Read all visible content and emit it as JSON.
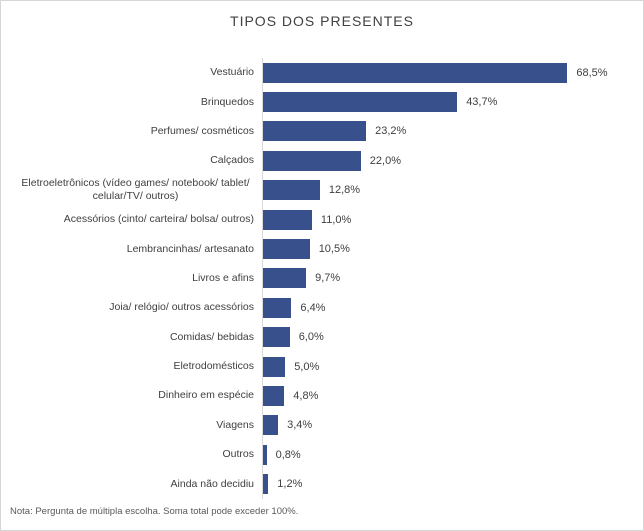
{
  "title": "TIPOS DOS PRESENTES",
  "note": "Nota: Pergunta de múltipla escolha. Soma total pode exceder 100%.",
  "chart_data": {
    "type": "bar",
    "orientation": "horizontal",
    "title": "TIPOS DOS PRESENTES",
    "xlabel": "",
    "ylabel": "",
    "xlim": [
      0,
      70
    ],
    "grid": false,
    "legend": false,
    "bar_color": "#38508C",
    "axis_color": "#D9D9D9",
    "text_color": "#404040",
    "note_color": "#595959",
    "categories": [
      "Vestuário",
      "Brinquedos",
      "Perfumes/ cosméticos",
      "Calçados",
      "Eletroeletrônicos (vídeo games/ notebook/ tablet/ celular/TV/ outros)",
      "Acessórios (cinto/ carteira/ bolsa/ outros)",
      "Lembrancinhas/ artesanato",
      "Livros e afins",
      "Joia/ relógio/ outros acessórios",
      "Comidas/ bebidas",
      "Eletrodomésticos",
      "Dinheiro em espécie",
      "Viagens",
      "Outros",
      "Ainda não decidiu"
    ],
    "values": [
      68.5,
      43.7,
      23.2,
      22.0,
      12.8,
      11.0,
      10.5,
      9.7,
      6.4,
      6.0,
      5.0,
      4.8,
      3.4,
      0.8,
      1.2
    ],
    "value_labels": [
      "68,5%",
      "43,7%",
      "23,2%",
      "22,0%",
      "12,8%",
      "11,0%",
      "10,5%",
      "9,7%",
      "6,4%",
      "6,0%",
      "5,0%",
      "4,8%",
      "3,4%",
      "0,8%",
      "1,2%"
    ]
  }
}
